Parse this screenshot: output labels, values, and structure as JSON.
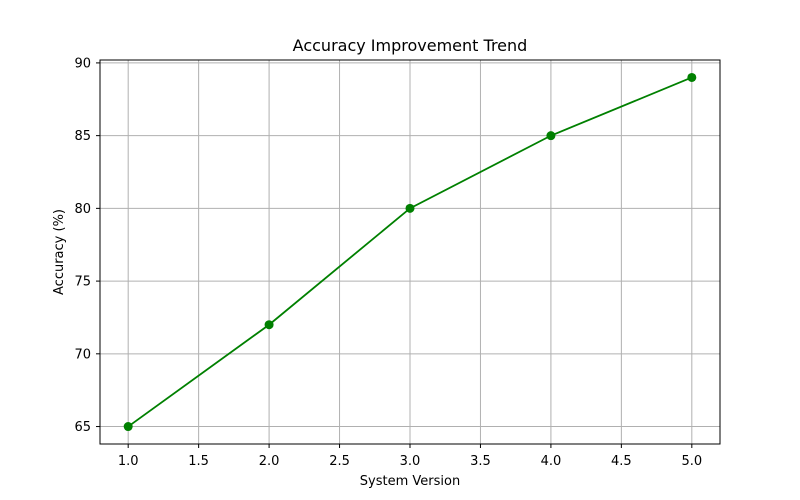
{
  "chart_data": {
    "type": "line",
    "title": "Accuracy Improvement Trend",
    "xlabel": "System Version",
    "ylabel": "Accuracy (%)",
    "xlim": [
      0.8,
      5.2
    ],
    "ylim": [
      63.8,
      90.2
    ],
    "x_ticks": [
      1.0,
      1.5,
      2.0,
      2.5,
      3.0,
      3.5,
      4.0,
      4.5,
      5.0
    ],
    "x_tick_labels": [
      "1.0",
      "1.5",
      "2.0",
      "2.5",
      "3.0",
      "3.5",
      "4.0",
      "4.5",
      "5.0"
    ],
    "y_ticks": [
      65,
      70,
      75,
      80,
      85,
      90
    ],
    "y_tick_labels": [
      "65",
      "70",
      "75",
      "80",
      "85",
      "90"
    ],
    "grid": true,
    "series": [
      {
        "x": [
          1.0,
          2.0,
          3.0,
          4.0,
          5.0
        ],
        "values": [
          65,
          72,
          80,
          85,
          89
        ],
        "color": "#008000",
        "marker": "circle"
      }
    ]
  }
}
